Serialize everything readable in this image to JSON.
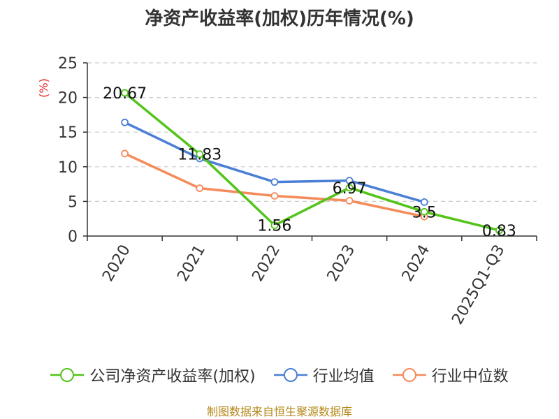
{
  "chart_data": {
    "type": "line",
    "title": "净资产收益率(加权)历年情况(%)",
    "ylabel": "(%)",
    "xlabel": "",
    "ylim": [
      0,
      25
    ],
    "yticks": [
      0,
      5,
      10,
      15,
      20,
      25
    ],
    "grid": true,
    "categories": [
      "2020",
      "2021",
      "2022",
      "2023",
      "2024",
      "2025Q1-Q3"
    ],
    "series": [
      {
        "name": "公司净资产收益率(加权)",
        "color": "#52c41a",
        "values": [
          20.67,
          11.83,
          1.56,
          6.97,
          3.5,
          0.83
        ],
        "labels": [
          "20.67",
          "11.83",
          "1.56",
          "6.97",
          "3.5",
          "0.83"
        ]
      },
      {
        "name": "行业均值",
        "color": "#4a7fd6",
        "values": [
          16.4,
          11.2,
          7.8,
          8.0,
          4.9,
          null
        ]
      },
      {
        "name": "行业中位数",
        "color": "#f58a5a",
        "values": [
          11.9,
          6.9,
          5.8,
          5.1,
          2.8,
          null
        ]
      }
    ],
    "legend_position": "bottom"
  },
  "source_note": "制图数据来自恒生聚源数据库"
}
